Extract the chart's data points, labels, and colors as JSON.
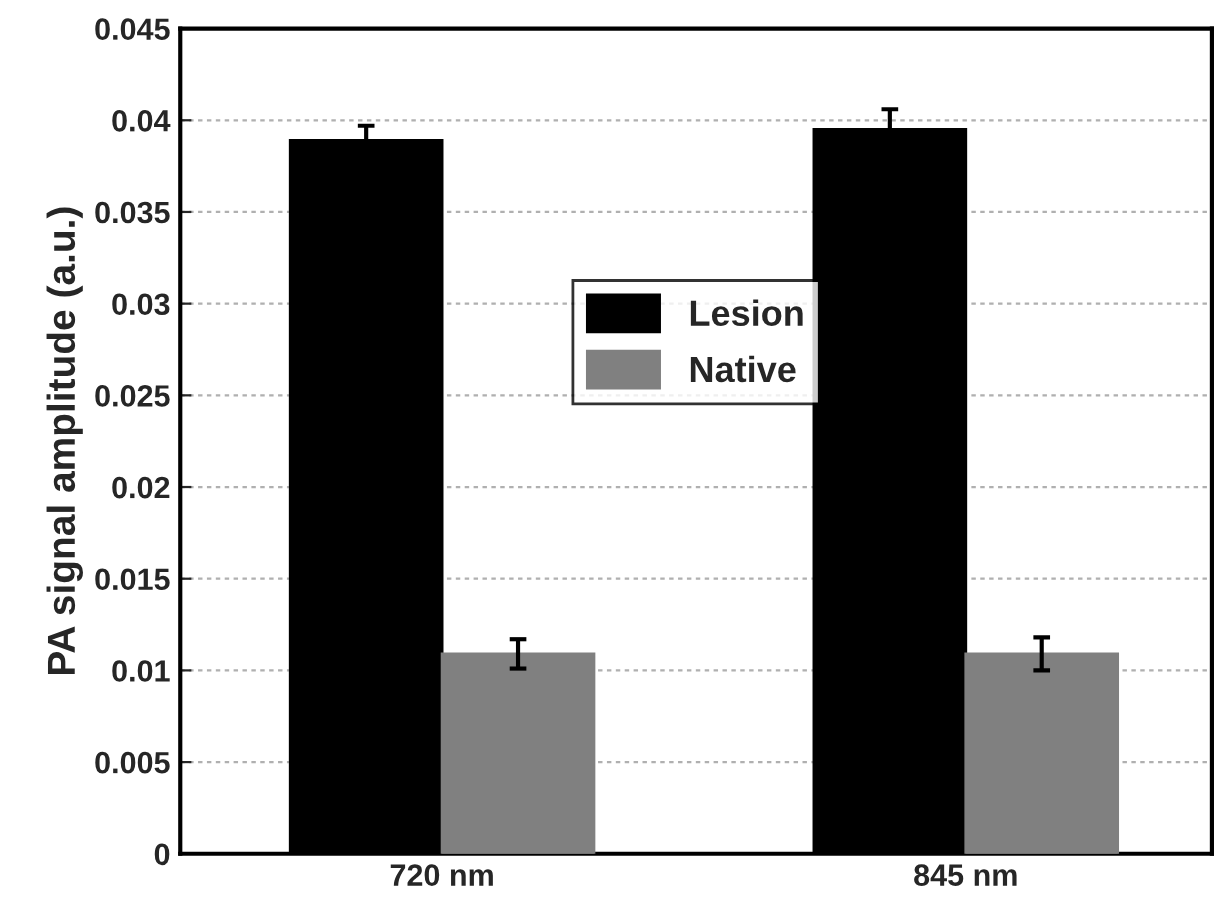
{
  "chart_data": {
    "type": "bar",
    "ylabel": "PA signal amplitude (a.u.)",
    "categories": [
      "720 nm",
      "845 nm"
    ],
    "series": [
      {
        "name": "Lesion",
        "color": "#000000",
        "values": [
          0.0389,
          0.0395
        ],
        "errors": [
          0.0008,
          0.0011
        ]
      },
      {
        "name": "Native",
        "color": "#808080",
        "values": [
          0.0109,
          0.0109
        ],
        "errors": [
          0.0008,
          0.0009
        ]
      }
    ],
    "ylim": [
      0,
      0.045
    ],
    "yticks": [
      0,
      0.005,
      0.01,
      0.015,
      0.02,
      0.025,
      0.03,
      0.035,
      0.04,
      0.045
    ],
    "grid": "y",
    "legend": "center"
  }
}
